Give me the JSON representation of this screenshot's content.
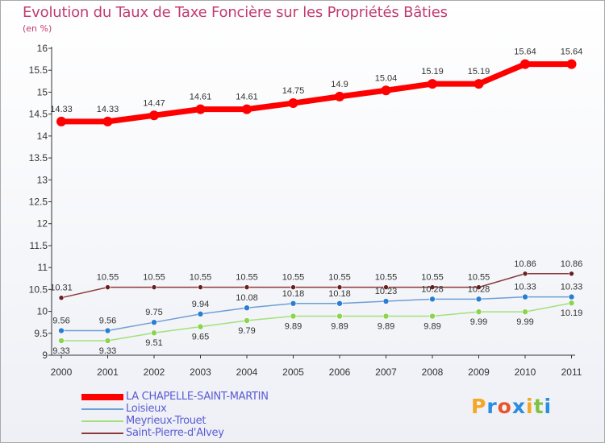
{
  "title": "Evolution du Taux de Taxe Foncière sur les Propriétés Bâties",
  "unit_label": "(en %)",
  "logo": {
    "letters": [
      "P",
      "r",
      "o",
      "x",
      "i",
      "t",
      "i"
    ],
    "colors": [
      "#f5a623",
      "#2a8de0",
      "#e8552a",
      "#2a8de0",
      "#f5a623",
      "#7ec242",
      "#2a8de0"
    ]
  },
  "chart_data": {
    "type": "line",
    "title": "Evolution du Taux de Taxe Foncière sur les Propriétés Bâties",
    "ylabel": "(en %)",
    "categories": [
      "2000",
      "2001",
      "2002",
      "2003",
      "2004",
      "2005",
      "2006",
      "2007",
      "2008",
      "2009",
      "2010",
      "2011"
    ],
    "ylim": [
      9,
      16
    ],
    "yticks": [
      "9",
      "9.5",
      "10",
      "10.5",
      "11",
      "11.5",
      "12",
      "12.5",
      "13",
      "13.5",
      "14",
      "14.5",
      "15",
      "15.5",
      "16"
    ],
    "grid": false,
    "legend_position": "bottom-left",
    "series": [
      {
        "name": "LA CHAPELLE-SAINT-MARTIN",
        "color": "#ff0000",
        "values": [
          14.33,
          14.33,
          14.47,
          14.61,
          14.61,
          14.75,
          14.9,
          15.04,
          15.19,
          15.19,
          15.64,
          15.64
        ],
        "labels": [
          "14.33",
          "14.33",
          "14.47",
          "14.61",
          "14.61",
          "14.75",
          "14.9",
          "15.04",
          "15.19",
          "15.19",
          "15.64",
          "15.64"
        ]
      },
      {
        "name": "Loisieux",
        "color": "#6e9ed6",
        "values": [
          9.56,
          9.56,
          9.75,
          9.94,
          10.08,
          10.18,
          10.18,
          10.23,
          10.28,
          10.28,
          10.33,
          10.33
        ],
        "labels": [
          "9.56",
          "9.56",
          "9.75",
          "9.94",
          "10.08",
          "10.18",
          "10.18",
          "10.23",
          "10.28",
          "10.28",
          "10.33",
          "10.33"
        ]
      },
      {
        "name": "Meyrieux-Trouet",
        "color": "#a3e07a",
        "values": [
          9.33,
          9.33,
          9.51,
          9.65,
          9.79,
          9.89,
          9.89,
          9.89,
          9.89,
          9.99,
          9.99,
          10.19
        ],
        "labels": [
          "9.33",
          "9.33",
          "9.51",
          "9.65",
          "9.79",
          "9.89",
          "9.89",
          "9.89",
          "9.89",
          "9.99",
          "9.99",
          "10.19"
        ]
      },
      {
        "name": "Saint-Pierre-d'Alvey",
        "color": "#8a3a3a",
        "values": [
          10.31,
          10.55,
          10.55,
          10.55,
          10.55,
          10.55,
          10.55,
          10.55,
          10.55,
          10.55,
          10.86,
          10.86
        ],
        "labels": [
          "10.31",
          "10.55",
          "10.55",
          "10.55",
          "10.55",
          "10.55",
          "10.55",
          "10.55",
          "10.55",
          "10.55",
          "10.86",
          "10.86"
        ]
      }
    ]
  }
}
